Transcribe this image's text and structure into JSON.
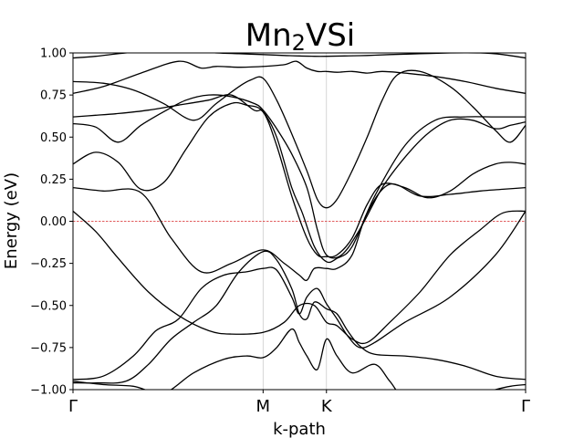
{
  "chart_data": {
    "type": "line",
    "title_main": "Mn",
    "title_sub": "2",
    "title_rest": "VSi",
    "xlabel": "k-path",
    "ylabel": "Energy (eV)",
    "ylim": [
      -1.0,
      1.0
    ],
    "xlim": [
      0,
      3.0
    ],
    "grid": false,
    "legend": "none",
    "yticks": [
      {
        "value": -1.0,
        "label": "−1.00"
      },
      {
        "value": -0.75,
        "label": "−0.75"
      },
      {
        "value": -0.5,
        "label": "−0.50"
      },
      {
        "value": -0.25,
        "label": "−0.25"
      },
      {
        "value": 0.0,
        "label": "0.00"
      },
      {
        "value": 0.25,
        "label": "0.25"
      },
      {
        "value": 0.5,
        "label": "0.50"
      },
      {
        "value": 0.75,
        "label": "0.75"
      },
      {
        "value": 1.0,
        "label": "1.00"
      }
    ],
    "xticks": [
      {
        "value": 0.0,
        "label": "Γ"
      },
      {
        "value": 1.26,
        "label": "M"
      },
      {
        "value": 1.68,
        "label": "K"
      },
      {
        "value": 3.0,
        "label": "Γ"
      }
    ],
    "fermi_level": {
      "value": 0.0,
      "color": "#d62728"
    },
    "band_color": "#000000",
    "vline_color": "#cccccc",
    "series": [
      {
        "x": [
          0,
          0.15,
          0.35,
          0.55,
          0.75,
          0.95,
          1.1,
          1.26,
          1.4,
          1.5,
          1.6,
          1.68,
          1.8,
          1.95,
          2.1,
          2.3,
          2.5,
          2.7,
          2.85,
          3.0
        ],
        "y": [
          0.97,
          0.98,
          1.0,
          1.01,
          1.01,
          1.0,
          0.995,
          0.99,
          0.985,
          0.982,
          0.98,
          0.98,
          0.982,
          0.985,
          0.99,
          0.995,
          1.0,
          1.0,
          0.99,
          0.97
        ]
      },
      {
        "x": [
          0,
          0.2,
          0.45,
          0.7,
          0.85,
          0.95,
          1.1,
          1.26,
          1.4,
          1.48,
          1.55,
          1.62,
          1.68,
          1.75,
          1.85,
          1.95,
          2.05,
          2.2,
          2.4,
          2.6,
          2.8,
          3.0
        ],
        "y": [
          0.76,
          0.8,
          0.88,
          0.95,
          0.91,
          0.92,
          0.915,
          0.92,
          0.93,
          0.95,
          0.91,
          0.89,
          0.89,
          0.885,
          0.89,
          0.88,
          0.89,
          0.88,
          0.86,
          0.83,
          0.79,
          0.76
        ]
      },
      {
        "x": [
          0,
          0.2,
          0.4,
          0.6,
          0.8,
          0.95,
          1.1,
          1.18,
          1.26,
          1.35,
          1.45,
          1.55,
          1.62,
          1.68,
          1.75,
          1.85,
          1.95,
          2.05,
          2.15,
          2.3,
          2.5,
          2.65,
          2.8,
          2.9,
          3.0
        ],
        "y": [
          0.83,
          0.82,
          0.78,
          0.7,
          0.6,
          0.7,
          0.8,
          0.84,
          0.85,
          0.72,
          0.52,
          0.3,
          0.13,
          0.08,
          0.13,
          0.3,
          0.5,
          0.72,
          0.87,
          0.89,
          0.8,
          0.68,
          0.54,
          0.47,
          0.57
        ]
      },
      {
        "x": [
          0,
          0.15,
          0.3,
          0.45,
          0.6,
          0.75,
          0.9,
          1.05,
          1.2,
          1.26,
          1.35,
          1.45,
          1.55,
          1.62,
          1.68,
          1.78,
          1.9,
          2.05,
          2.2,
          2.35,
          2.5,
          2.65,
          2.8,
          2.9,
          3.0
        ],
        "y": [
          0.58,
          0.56,
          0.47,
          0.57,
          0.65,
          0.72,
          0.75,
          0.74,
          0.7,
          0.66,
          0.55,
          0.4,
          0.2,
          -0.05,
          -0.2,
          -0.2,
          -0.05,
          0.2,
          0.38,
          0.52,
          0.6,
          0.6,
          0.55,
          0.57,
          0.59
        ]
      },
      {
        "x": [
          0,
          0.15,
          0.3,
          0.5,
          0.7,
          0.9,
          1.05,
          1.2,
          1.26,
          1.35,
          1.45,
          1.52,
          1.6,
          1.68,
          1.75,
          1.85,
          2.0,
          2.2,
          2.4,
          2.6,
          2.8,
          3.0
        ],
        "y": [
          0.62,
          0.63,
          0.64,
          0.66,
          0.69,
          0.72,
          0.75,
          0.66,
          0.65,
          0.5,
          0.2,
          0.05,
          -0.15,
          -0.24,
          -0.22,
          -0.15,
          0.15,
          0.45,
          0.6,
          0.62,
          0.62,
          0.62
        ]
      },
      {
        "x": [
          0,
          0.15,
          0.3,
          0.45,
          0.6,
          0.75,
          0.9,
          1.05,
          1.15,
          1.26,
          1.35,
          1.45,
          1.55,
          1.62,
          1.68,
          1.75,
          1.85,
          1.95,
          2.05,
          2.2,
          2.35,
          2.5,
          2.65,
          2.8,
          2.9,
          3.0
        ],
        "y": [
          0.34,
          0.41,
          0.35,
          0.19,
          0.23,
          0.43,
          0.62,
          0.7,
          0.69,
          0.65,
          0.45,
          0.15,
          -0.1,
          -0.2,
          -0.21,
          -0.2,
          -0.1,
          0.1,
          0.22,
          0.2,
          0.14,
          0.18,
          0.28,
          0.34,
          0.35,
          0.34
        ]
      },
      {
        "x": [
          0,
          0.2,
          0.45,
          0.65,
          0.85,
          1.05,
          1.26,
          1.4,
          1.5,
          1.55,
          1.6,
          1.68,
          1.75,
          1.85,
          1.95,
          2.1,
          2.3,
          2.5,
          2.7,
          2.85,
          3.0
        ],
        "y": [
          0.2,
          0.18,
          0.17,
          -0.1,
          -0.3,
          -0.25,
          -0.17,
          -0.25,
          -0.32,
          -0.35,
          -0.28,
          -0.28,
          -0.28,
          -0.2,
          0.05,
          0.22,
          0.15,
          0.16,
          0.18,
          0.19,
          0.2
        ]
      },
      {
        "x": [
          0,
          0.15,
          0.3,
          0.5,
          0.7,
          0.9,
          1.05,
          1.26,
          1.4,
          1.5,
          1.6,
          1.68,
          1.75,
          1.85,
          1.95,
          2.1,
          2.3,
          2.5,
          2.7,
          2.85,
          3.0
        ],
        "y": [
          0.06,
          -0.06,
          -0.22,
          -0.42,
          -0.56,
          -0.65,
          -0.67,
          -0.66,
          -0.6,
          -0.5,
          -0.5,
          -0.6,
          -0.62,
          -0.7,
          -0.72,
          -0.6,
          -0.42,
          -0.2,
          -0.05,
          0.05,
          0.06
        ]
      },
      {
        "x": [
          0,
          0.2,
          0.4,
          0.55,
          0.7,
          0.85,
          1.0,
          1.15,
          1.26,
          1.35,
          1.45,
          1.5,
          1.55,
          1.62,
          1.68,
          1.75,
          1.82,
          1.9,
          2.0,
          2.2,
          2.5,
          2.8,
          3.0
        ],
        "y": [
          -0.94,
          -0.92,
          -0.8,
          -0.65,
          -0.58,
          -0.4,
          -0.32,
          -0.3,
          -0.28,
          -0.29,
          -0.45,
          -0.55,
          -0.45,
          -0.4,
          -0.49,
          -0.58,
          -0.68,
          -0.75,
          -0.72,
          -0.6,
          -0.45,
          -0.2,
          0.06
        ]
      },
      {
        "x": [
          0,
          0.15,
          0.35,
          0.5,
          0.65,
          0.8,
          0.95,
          1.1,
          1.26,
          1.35,
          1.45,
          1.5,
          1.55,
          1.6,
          1.68,
          1.75,
          1.82,
          1.9,
          2.0,
          2.2,
          2.4,
          2.6,
          2.8,
          3.0
        ],
        "y": [
          -0.96,
          -0.96,
          -0.95,
          -0.85,
          -0.7,
          -0.6,
          -0.5,
          -0.3,
          -0.18,
          -0.23,
          -0.4,
          -0.55,
          -0.58,
          -0.48,
          -0.52,
          -0.55,
          -0.65,
          -0.74,
          -0.79,
          -0.8,
          -0.82,
          -0.86,
          -0.92,
          -0.94
        ]
      },
      {
        "x": [
          0,
          0.2,
          0.4,
          0.6,
          0.8,
          1.0,
          1.15,
          1.26,
          1.35,
          1.45,
          1.5,
          1.55,
          1.62,
          1.68,
          1.75,
          1.85,
          2.0,
          2.1,
          2.2,
          2.4,
          2.6,
          2.8,
          2.9,
          3.0
        ],
        "y": [
          -0.95,
          -0.97,
          -0.98,
          -1.02,
          -0.9,
          -0.82,
          -0.8,
          -0.81,
          -0.75,
          -0.64,
          -0.72,
          -0.8,
          -0.88,
          -0.7,
          -0.8,
          -0.9,
          -0.85,
          -0.95,
          -1.05,
          -1.05,
          -1.05,
          -1.0,
          -0.98,
          -0.97
        ]
      }
    ]
  }
}
